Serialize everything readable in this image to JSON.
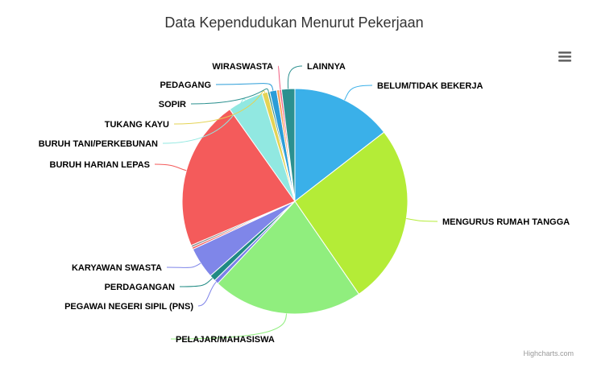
{
  "chart_data": {
    "type": "pie",
    "title": "Data Kependudukan Menurut Pekerjaan",
    "slices": [
      {
        "name": "BELUM/TIDAK BEKERJA",
        "value": 14.5,
        "color": "#3ab0e9"
      },
      {
        "name": "MENGURUS RUMAH TANGGA",
        "value": 25.9,
        "color": "#b4ec37"
      },
      {
        "name": "PELAJAR/MAHASISWA",
        "value": 21.6,
        "color": "#90ee7e"
      },
      {
        "name": "PEGAWAI NEGERI SIPIL (PNS)",
        "value": 0.6,
        "color": "#7b80e8"
      },
      {
        "name": "PERDAGANGAN",
        "value": 0.9,
        "color": "#1f8a83"
      },
      {
        "name": "KARYAWAN SWASTA",
        "value": 4.5,
        "color": "#7f86e9"
      },
      {
        "name": "",
        "value": 0.3,
        "color": "#f45b5b"
      },
      {
        "name": "",
        "value": 0.3,
        "color": "#8d8d8d"
      },
      {
        "name": "BURUH HARIAN LEPAS",
        "value": 21.6,
        "color": "#f45b5b"
      },
      {
        "name": "BURUH TANI/PERKEBUNAN",
        "value": 5.1,
        "color": "#91e8e1"
      },
      {
        "name": "TUKANG KAYU",
        "value": 0.8,
        "color": "#e4d354"
      },
      {
        "name": "SOPIR",
        "value": 0.3,
        "color": "#2b908f"
      },
      {
        "name": "PEDAGANG",
        "value": 1.0,
        "color": "#2b9dd8"
      },
      {
        "name": "",
        "value": 0.4,
        "color": "#f7a35c"
      },
      {
        "name": "WIRASWASTA",
        "value": 0.3,
        "color": "#f15c80"
      },
      {
        "name": "LAINNYA",
        "value": 1.9,
        "color": "#2b908f"
      }
    ]
  },
  "menu_icon": "hamburger-menu-icon",
  "credits": "Highcharts.com"
}
